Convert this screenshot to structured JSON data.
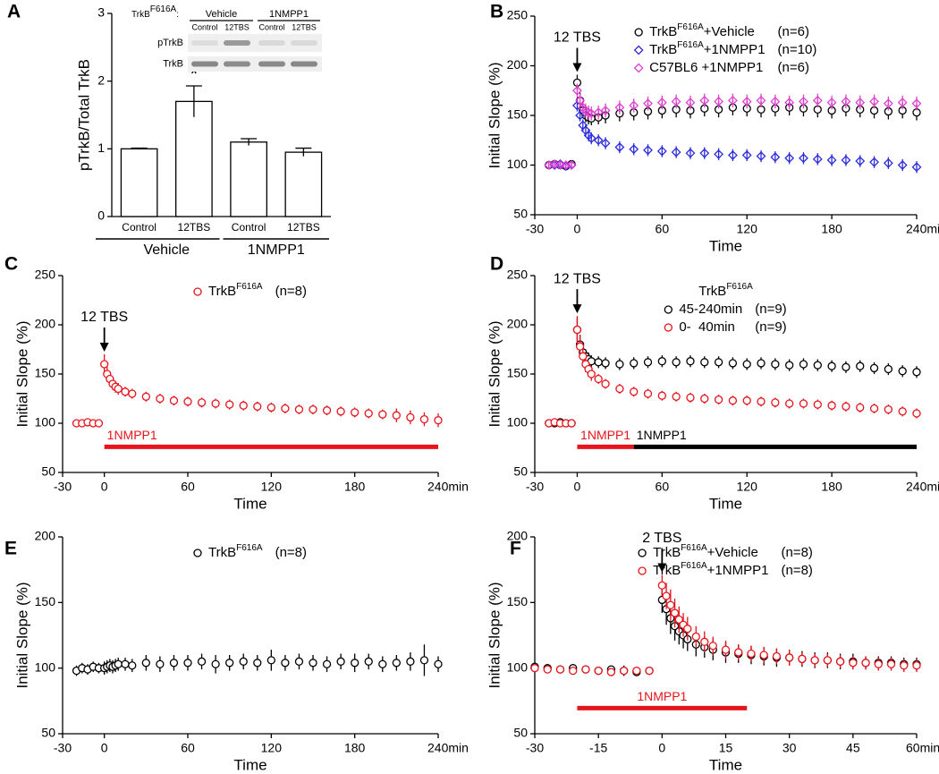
{
  "chart_data": [
    {
      "type": "bar",
      "panel": "A",
      "ylabel": "pTrkB/Total TrkB",
      "categories": [
        "Control",
        "12TBS",
        "Control",
        "12TBS"
      ],
      "groups": [
        "Vehicle",
        "1NMPP1"
      ],
      "values": [
        1.0,
        1.7,
        1.1,
        0.95
      ],
      "errors": [
        0.01,
        0.23,
        0.05,
        0.06
      ],
      "significance": [
        null,
        "*",
        null,
        null
      ],
      "color": "#ffffff",
      "ylim": [
        0,
        3
      ],
      "yticks": [
        0,
        1,
        2,
        3
      ],
      "blot": {
        "genotype": "TrkB",
        "genotype_sup": "F616A",
        "genotype_suffix": ":",
        "groups": [
          "Vehicle",
          "1NMPP1"
        ],
        "lanes": [
          "Control",
          "12TBS",
          "Control",
          "12TBS"
        ],
        "rows": [
          "pTrkB",
          "TrkB"
        ]
      }
    },
    {
      "type": "scatter",
      "panel": "B",
      "xlabel": "Time",
      "ylabel": "Initial Slope (%)",
      "xlim": [
        -30,
        240
      ],
      "xticks": [
        -30,
        0,
        60,
        120,
        180,
        {
          "value": 240,
          "label": "240min"
        }
      ],
      "ylim": [
        50,
        250
      ],
      "yticks": [
        50,
        100,
        150,
        200,
        250
      ],
      "legend": "upper center",
      "annotations": [
        {
          "text": "12 TBS",
          "x": 0
        }
      ],
      "x": [
        -20,
        -16,
        -12,
        -8,
        -4,
        0,
        2,
        4,
        6,
        8,
        10,
        15,
        20,
        30,
        40,
        50,
        60,
        70,
        80,
        90,
        100,
        110,
        120,
        130,
        140,
        150,
        160,
        170,
        180,
        190,
        200,
        210,
        220,
        230,
        240
      ],
      "series": [
        {
          "name": "TrkB",
          "name_sup": "F616A",
          "name_suffix": "+Vehicle",
          "n_label": "(n=6)",
          "color": "#000000",
          "marker": "circle",
          "values": [
            100,
            101,
            100,
            99,
            101,
            183,
            165,
            155,
            150,
            148,
            147,
            148,
            150,
            152,
            153,
            154,
            155,
            156,
            155,
            157,
            156,
            158,
            157,
            156,
            157,
            158,
            157,
            156,
            155,
            157,
            156,
            155,
            154,
            155,
            153
          ],
          "errors": [
            3,
            3,
            3,
            3,
            3,
            8,
            8,
            7,
            7,
            7,
            7,
            7,
            8,
            8,
            8,
            8,
            8,
            8,
            8,
            8,
            8,
            8,
            8,
            8,
            8,
            8,
            8,
            8,
            8,
            8,
            8,
            8,
            8,
            8,
            8
          ]
        },
        {
          "name": "TrkB",
          "name_sup": "F616A",
          "name_suffix": "+1NMPP1",
          "n_label": "(n=10)",
          "color": "#2b2bdc",
          "marker": "diamond",
          "values": [
            100,
            100,
            101,
            99,
            100,
            160,
            150,
            140,
            135,
            130,
            127,
            125,
            122,
            118,
            116,
            115,
            114,
            113,
            112,
            112,
            111,
            110,
            110,
            109,
            108,
            107,
            107,
            106,
            105,
            105,
            104,
            103,
            102,
            100,
            98
          ],
          "errors": [
            3,
            3,
            3,
            3,
            3,
            6,
            6,
            6,
            6,
            6,
            6,
            6,
            6,
            6,
            6,
            6,
            6,
            6,
            6,
            6,
            6,
            6,
            6,
            6,
            6,
            6,
            6,
            6,
            6,
            6,
            6,
            6,
            6,
            6,
            6
          ]
        },
        {
          "name": "C57BL6 +1NMPP1",
          "n_label": "(n=6)",
          "color": "#e040d0",
          "marker": "diamond",
          "values": [
            100,
            101,
            100,
            100,
            100,
            175,
            165,
            158,
            155,
            153,
            152,
            153,
            155,
            158,
            160,
            162,
            163,
            164,
            163,
            165,
            164,
            165,
            164,
            165,
            164,
            163,
            164,
            165,
            163,
            164,
            163,
            164,
            162,
            163,
            162
          ],
          "errors": [
            4,
            4,
            4,
            4,
            4,
            7,
            7,
            7,
            7,
            7,
            7,
            7,
            7,
            7,
            7,
            7,
            7,
            7,
            7,
            7,
            7,
            7,
            7,
            7,
            7,
            7,
            7,
            7,
            7,
            7,
            7,
            7,
            7,
            7,
            7
          ]
        }
      ]
    },
    {
      "type": "scatter",
      "panel": "C",
      "xlabel": "Time",
      "ylabel": "Initial Slope (%)",
      "xlim": [
        -30,
        240
      ],
      "xticks": [
        -30,
        0,
        60,
        120,
        180,
        {
          "value": 240,
          "label": "240min"
        }
      ],
      "ylim": [
        50,
        250
      ],
      "yticks": [
        50,
        100,
        150,
        200,
        250
      ],
      "legend": "upper center",
      "annotations": [
        {
          "text": "12 TBS",
          "x": 0
        }
      ],
      "drug_bars": [
        {
          "label": "1NMPP1",
          "start": 0,
          "end": 240,
          "color": "#e8141b"
        }
      ],
      "x": [
        -20,
        -16,
        -12,
        -8,
        -4,
        0,
        2,
        4,
        6,
        8,
        10,
        15,
        20,
        30,
        40,
        50,
        60,
        70,
        80,
        90,
        100,
        110,
        120,
        130,
        140,
        150,
        160,
        170,
        180,
        190,
        200,
        210,
        220,
        230,
        240
      ],
      "series": [
        {
          "name": "TrkB",
          "name_sup": "F616A",
          "n_label": "(n=8)",
          "color": "#e8141b",
          "marker": "circle",
          "values": [
            100,
            100,
            101,
            100,
            100,
            160,
            150,
            145,
            140,
            137,
            135,
            132,
            130,
            127,
            125,
            123,
            122,
            121,
            120,
            119,
            118,
            117,
            116,
            115,
            114,
            114,
            113,
            112,
            111,
            110,
            109,
            108,
            106,
            104,
            103
          ],
          "errors": [
            3,
            3,
            3,
            3,
            3,
            10,
            8,
            7,
            6,
            6,
            6,
            5,
            5,
            5,
            5,
            5,
            5,
            5,
            5,
            5,
            5,
            5,
            5,
            5,
            5,
            5,
            5,
            5,
            5,
            5,
            5,
            7,
            7,
            7,
            7
          ]
        }
      ]
    },
    {
      "type": "scatter",
      "panel": "D",
      "xlabel": "Time",
      "ylabel": "Initial Slope (%)",
      "xlim": [
        -30,
        240
      ],
      "xticks": [
        -30,
        0,
        60,
        120,
        180,
        {
          "value": 240,
          "label": "240min"
        }
      ],
      "ylim": [
        50,
        250
      ],
      "yticks": [
        50,
        100,
        150,
        200,
        250
      ],
      "legend": "upper center",
      "legend_title": "TrkB",
      "legend_title_sup": "F616A",
      "annotations": [
        {
          "text": "12 TBS",
          "x": 0
        }
      ],
      "drug_bars": [
        {
          "label": "1NMPP1",
          "start": 0,
          "end": 40,
          "color": "#e8141b"
        },
        {
          "label": "1NMPP1",
          "start": 40,
          "end": 240,
          "color": "#000000"
        }
      ],
      "x": [
        -20,
        -16,
        -12,
        -8,
        -4,
        0,
        2,
        4,
        6,
        8,
        10,
        15,
        20,
        30,
        40,
        50,
        60,
        70,
        80,
        90,
        100,
        110,
        120,
        130,
        140,
        150,
        160,
        170,
        180,
        190,
        200,
        210,
        220,
        230,
        240
      ],
      "series": [
        {
          "name": "45-240min",
          "n_label": "(n=9)",
          "color": "#000000",
          "marker": "circle",
          "values": [
            100,
            100,
            101,
            100,
            100,
            195,
            180,
            172,
            168,
            165,
            163,
            162,
            161,
            160,
            161,
            162,
            163,
            162,
            163,
            162,
            162,
            161,
            160,
            161,
            160,
            159,
            160,
            159,
            158,
            157,
            158,
            156,
            155,
            153,
            152
          ],
          "errors": [
            3,
            3,
            3,
            3,
            3,
            12,
            10,
            8,
            7,
            7,
            6,
            6,
            6,
            6,
            6,
            6,
            6,
            6,
            6,
            6,
            6,
            6,
            6,
            6,
            6,
            6,
            6,
            6,
            6,
            6,
            6,
            6,
            6,
            6,
            6
          ]
        },
        {
          "name": "0-  40min",
          "n_label": "(n=9)",
          "color": "#e8141b",
          "marker": "circle",
          "values": [
            100,
            101,
            100,
            100,
            100,
            195,
            178,
            168,
            160,
            155,
            150,
            145,
            140,
            135,
            132,
            130,
            128,
            127,
            126,
            125,
            124,
            123,
            123,
            122,
            121,
            120,
            120,
            119,
            118,
            117,
            116,
            115,
            114,
            112,
            110
          ],
          "errors": [
            3,
            3,
            3,
            3,
            3,
            14,
            12,
            10,
            8,
            7,
            7,
            5,
            5,
            5,
            5,
            5,
            5,
            5,
            5,
            5,
            5,
            5,
            5,
            5,
            5,
            5,
            5,
            5,
            5,
            5,
            5,
            5,
            5,
            5,
            5
          ]
        }
      ]
    },
    {
      "type": "scatter",
      "panel": "E",
      "xlabel": "Time",
      "ylabel": "Initial Slope (%)",
      "xlim": [
        -30,
        240
      ],
      "xticks": [
        -30,
        0,
        60,
        120,
        180,
        {
          "value": 240,
          "label": "240min"
        }
      ],
      "ylim": [
        50,
        200
      ],
      "yticks": [
        50,
        100,
        150,
        200
      ],
      "legend": "upper center",
      "x": [
        -20,
        -16,
        -12,
        -8,
        -4,
        0,
        2,
        4,
        6,
        8,
        10,
        15,
        20,
        30,
        40,
        50,
        60,
        70,
        80,
        90,
        100,
        110,
        120,
        130,
        140,
        150,
        160,
        170,
        180,
        190,
        200,
        210,
        220,
        230,
        240
      ],
      "series": [
        {
          "name": "TrkB",
          "name_sup": "F616A",
          "n_label": "(n=8)",
          "color": "#000000",
          "marker": "circle",
          "values": [
            98,
            100,
            99,
            101,
            100,
            100,
            101,
            102,
            101,
            102,
            103,
            103,
            102,
            104,
            103,
            104,
            104,
            105,
            103,
            104,
            105,
            104,
            106,
            104,
            105,
            104,
            103,
            105,
            104,
            105,
            103,
            104,
            105,
            106,
            103
          ],
          "errors": [
            4,
            4,
            4,
            4,
            4,
            5,
            5,
            5,
            5,
            5,
            5,
            5,
            5,
            6,
            6,
            6,
            6,
            6,
            7,
            6,
            6,
            6,
            8,
            6,
            6,
            6,
            6,
            6,
            7,
            6,
            6,
            6,
            7,
            12,
            6
          ]
        }
      ]
    },
    {
      "type": "scatter",
      "panel": "F",
      "xlabel": "Time",
      "ylabel": "Initial Slope (%)",
      "xlim": [
        -30,
        60
      ],
      "xticks": [
        -30,
        -15,
        0,
        15,
        30,
        45,
        {
          "value": 60,
          "label": "60min"
        }
      ],
      "ylim": [
        50,
        200
      ],
      "yticks": [
        50,
        100,
        150,
        200
      ],
      "legend": "upper center",
      "annotations": [
        {
          "text": "2 TBS",
          "x": 0
        }
      ],
      "drug_bars": [
        {
          "label": "1NMPP1",
          "start": -20,
          "end": 20,
          "color": "#e8141b"
        }
      ],
      "x": [
        -30,
        -27,
        -24,
        -21,
        -18,
        -15,
        -12,
        -9,
        -6,
        -3,
        0,
        1,
        2,
        3,
        4,
        5,
        6,
        8,
        10,
        12,
        15,
        18,
        21,
        24,
        27,
        30,
        33,
        36,
        39,
        42,
        45,
        48,
        51,
        54,
        57,
        60
      ],
      "series": [
        {
          "name": "TrkB",
          "name_sup": "F616A",
          "name_suffix": "+Vehicle",
          "n_label": "(n=8)",
          "color": "#000000",
          "marker": "circle",
          "values": [
            101,
            100,
            99,
            100,
            99,
            98,
            99,
            98,
            97,
            98,
            152,
            145,
            138,
            132,
            128,
            125,
            122,
            118,
            116,
            114,
            112,
            111,
            110,
            109,
            108,
            108,
            107,
            106,
            106,
            105,
            105,
            104,
            104,
            104,
            103,
            103
          ],
          "errors": [
            3,
            3,
            3,
            3,
            3,
            3,
            3,
            4,
            3,
            3,
            10,
            12,
            12,
            11,
            10,
            10,
            9,
            9,
            8,
            8,
            8,
            7,
            7,
            7,
            7,
            6,
            6,
            6,
            6,
            6,
            6,
            5,
            5,
            5,
            5,
            5
          ]
        },
        {
          "name": "TrkB",
          "name_sup": "F616A",
          "name_suffix": "+1NMPP1",
          "n_label": "(n=8)",
          "color": "#e8141b",
          "marker": "circle",
          "values": [
            100,
            99,
            99,
            98,
            99,
            98,
            97,
            98,
            98,
            98,
            163,
            155,
            148,
            142,
            137,
            133,
            130,
            124,
            120,
            117,
            114,
            112,
            111,
            110,
            109,
            108,
            107,
            106,
            106,
            105,
            104,
            104,
            103,
            103,
            102,
            102
          ],
          "errors": [
            3,
            3,
            3,
            3,
            3,
            3,
            3,
            3,
            3,
            3,
            8,
            10,
            12,
            11,
            10,
            9,
            9,
            8,
            8,
            7,
            7,
            6,
            6,
            6,
            6,
            6,
            5,
            5,
            5,
            5,
            5,
            5,
            5,
            5,
            5,
            5
          ]
        }
      ]
    }
  ]
}
